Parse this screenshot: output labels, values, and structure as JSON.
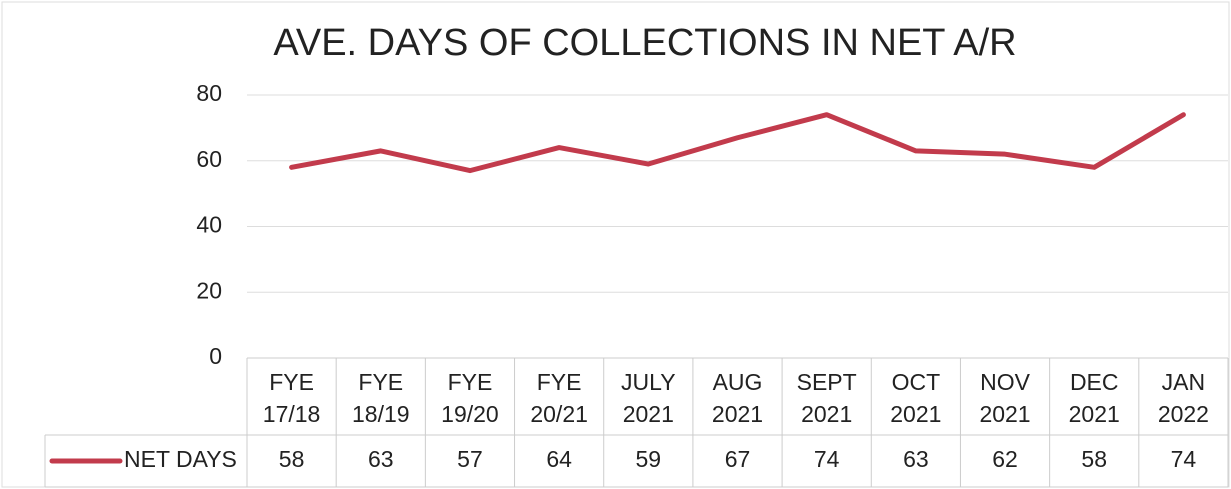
{
  "chart_data": {
    "type": "line",
    "title": "AVE. DAYS OF COLLECTIONS IN NET A/R",
    "categories": [
      "FYE 17/18",
      "FYE 18/19",
      "FYE 19/20",
      "FYE 20/21",
      "JULY 2021",
      "AUG 2021",
      "SEPT 2021",
      "OCT 2021",
      "NOV 2021",
      "DEC 2021",
      "JAN 2022"
    ],
    "series": [
      {
        "name": "NET DAYS",
        "color": "#c23b4c",
        "values": [
          58,
          63,
          57,
          64,
          59,
          67,
          74,
          63,
          62,
          58,
          74
        ]
      }
    ],
    "ylim": [
      0,
      80
    ],
    "yticks": [
      0,
      20,
      40,
      60,
      80
    ],
    "grid": true
  }
}
